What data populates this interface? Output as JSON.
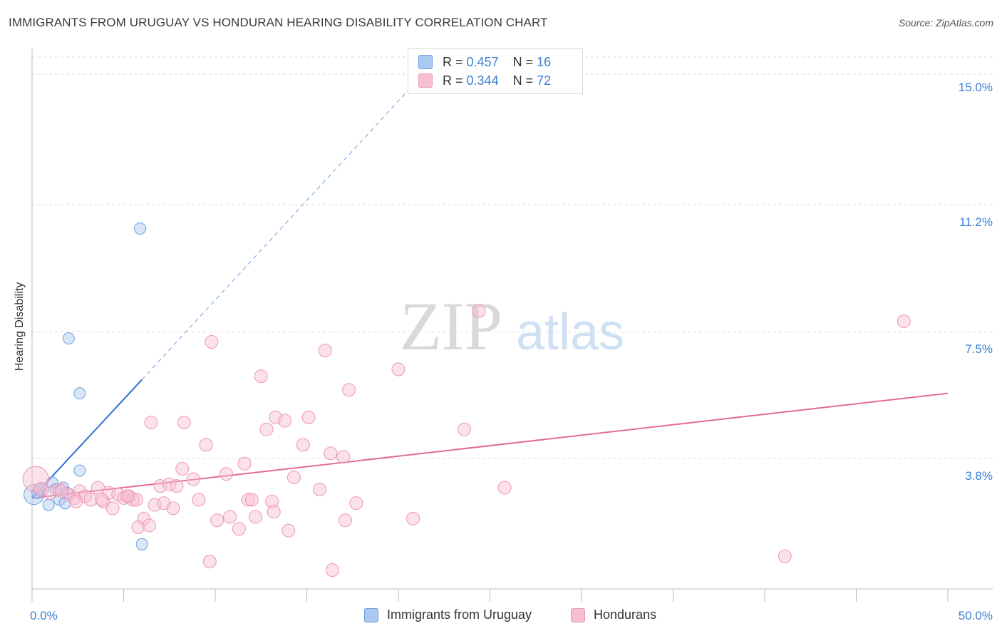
{
  "title": "IMMIGRANTS FROM URUGUAY VS HONDURAN HEARING DISABILITY CORRELATION CHART",
  "source": "Source: ZipAtlas.com",
  "watermark": {
    "zip": "ZIP",
    "atlas": "atlas"
  },
  "legend": {
    "series1": {
      "r_label": "R =",
      "r_value": "0.457",
      "n_label": "N =",
      "n_value": "16"
    },
    "series2": {
      "r_label": "R =",
      "r_value": "0.344",
      "n_label": "N =",
      "n_value": "72"
    }
  },
  "bottom_legend": {
    "series1": "Immigrants from Uruguay",
    "series2": "Hondurans"
  },
  "colors": {
    "blue_fill": "#aac8f0",
    "blue_stroke": "#6a9fe0",
    "blue_line": "#2f6fd0",
    "pink_fill": "#f6bfd0",
    "pink_stroke": "#ee96b4",
    "pink_line": "#e36b98",
    "tick_text": "#3d7fd4",
    "grid": "#dedede"
  },
  "chart_data": {
    "type": "scatter",
    "title": "IMMIGRANTS FROM URUGUAY VS HONDURAN HEARING DISABILITY CORRELATION CHART",
    "xlabel": "",
    "ylabel": "Hearing Disability",
    "xlim": [
      0,
      50
    ],
    "ylim": [
      0,
      15.5
    ],
    "x_tick_labels": {
      "min": "0.0%",
      "max": "50.0%"
    },
    "y_ticks": [
      {
        "value": 3.8,
        "label": "3.8%"
      },
      {
        "value": 7.5,
        "label": "7.5%"
      },
      {
        "value": 11.2,
        "label": "11.2%"
      },
      {
        "value": 15.0,
        "label": "15.0%"
      }
    ],
    "series": [
      {
        "name": "Immigrants from Uruguay",
        "color": "blue",
        "trend": {
          "x0": 0.0,
          "y0": 2.65,
          "x1": 6.0,
          "y1": 6.1,
          "x_dash_end": 21.0,
          "y_dash_end": 14.8
        },
        "points": [
          [
            0.1,
            2.75,
            14
          ],
          [
            0.3,
            2.8,
            8
          ],
          [
            0.6,
            2.9,
            8
          ],
          [
            0.9,
            2.45,
            8
          ],
          [
            1.1,
            3.1,
            8
          ],
          [
            1.3,
            2.9,
            8
          ],
          [
            1.5,
            2.6,
            8
          ],
          [
            1.7,
            2.95,
            8
          ],
          [
            1.8,
            2.5,
            8
          ],
          [
            1.9,
            2.8,
            8
          ],
          [
            2.6,
            3.45,
            8
          ],
          [
            2.6,
            5.7,
            8
          ],
          [
            2.0,
            7.3,
            8
          ],
          [
            5.9,
            10.5,
            8
          ],
          [
            6.0,
            1.3,
            8
          ],
          [
            0.4,
            2.9,
            8
          ]
        ]
      },
      {
        "name": "Hondurans",
        "color": "pink",
        "trend": {
          "x0": 0.0,
          "y0": 2.65,
          "x1": 50.0,
          "y1": 5.7
        },
        "points": [
          [
            0.2,
            3.2,
            18
          ],
          [
            0.5,
            2.9,
            10
          ],
          [
            1.0,
            2.8,
            9
          ],
          [
            1.5,
            2.9,
            9
          ],
          [
            2.0,
            2.75,
            9
          ],
          [
            2.3,
            2.65,
            9
          ],
          [
            2.6,
            2.85,
            9
          ],
          [
            2.9,
            2.7,
            9
          ],
          [
            3.2,
            2.6,
            9
          ],
          [
            3.6,
            2.95,
            9
          ],
          [
            3.9,
            2.55,
            9
          ],
          [
            4.2,
            2.8,
            9
          ],
          [
            4.4,
            2.35,
            9
          ],
          [
            4.7,
            2.75,
            9
          ],
          [
            5.0,
            2.65,
            9
          ],
          [
            5.3,
            2.7,
            9
          ],
          [
            5.5,
            2.6,
            9
          ],
          [
            5.7,
            2.6,
            9
          ],
          [
            5.8,
            1.8,
            9
          ],
          [
            6.1,
            2.05,
            9
          ],
          [
            6.4,
            1.85,
            9
          ],
          [
            6.5,
            4.85,
            9
          ],
          [
            6.7,
            2.45,
            9
          ],
          [
            7.0,
            3.0,
            9
          ],
          [
            7.2,
            2.5,
            9
          ],
          [
            7.5,
            3.05,
            9
          ],
          [
            7.7,
            2.35,
            9
          ],
          [
            7.9,
            3.0,
            9
          ],
          [
            8.2,
            3.5,
            9
          ],
          [
            8.3,
            4.85,
            9
          ],
          [
            8.8,
            3.2,
            9
          ],
          [
            9.1,
            2.6,
            9
          ],
          [
            9.5,
            4.2,
            9
          ],
          [
            9.7,
            0.8,
            9
          ],
          [
            9.8,
            7.2,
            9
          ],
          [
            10.1,
            2.0,
            9
          ],
          [
            10.6,
            3.35,
            9
          ],
          [
            10.8,
            2.1,
            9
          ],
          [
            11.3,
            1.75,
            9
          ],
          [
            11.6,
            3.65,
            9
          ],
          [
            11.8,
            2.6,
            9
          ],
          [
            12.2,
            2.1,
            9
          ],
          [
            12.5,
            6.2,
            9
          ],
          [
            12.8,
            4.65,
            9
          ],
          [
            13.1,
            2.55,
            9
          ],
          [
            13.2,
            2.25,
            9
          ],
          [
            13.3,
            5.0,
            9
          ],
          [
            13.8,
            4.9,
            9
          ],
          [
            14.0,
            1.7,
            9
          ],
          [
            14.3,
            3.25,
            9
          ],
          [
            14.8,
            4.2,
            9
          ],
          [
            15.1,
            5.0,
            9
          ],
          [
            15.7,
            2.9,
            9
          ],
          [
            16.0,
            6.95,
            9
          ],
          [
            16.3,
            3.95,
            9
          ],
          [
            16.4,
            0.55,
            9
          ],
          [
            17.0,
            3.85,
            9
          ],
          [
            17.1,
            2.0,
            9
          ],
          [
            17.3,
            5.8,
            9
          ],
          [
            17.7,
            2.5,
            9
          ],
          [
            20.0,
            6.4,
            9
          ],
          [
            20.8,
            2.05,
            9
          ],
          [
            23.6,
            4.65,
            9
          ],
          [
            24.4,
            8.1,
            9
          ],
          [
            25.8,
            2.95,
            9
          ],
          [
            41.1,
            0.95,
            9
          ],
          [
            47.6,
            7.8,
            9
          ],
          [
            3.8,
            2.6,
            9
          ],
          [
            5.2,
            2.7,
            9
          ],
          [
            12.0,
            2.6,
            9
          ],
          [
            1.6,
            2.85,
            9
          ],
          [
            2.4,
            2.55,
            9
          ]
        ]
      }
    ]
  }
}
